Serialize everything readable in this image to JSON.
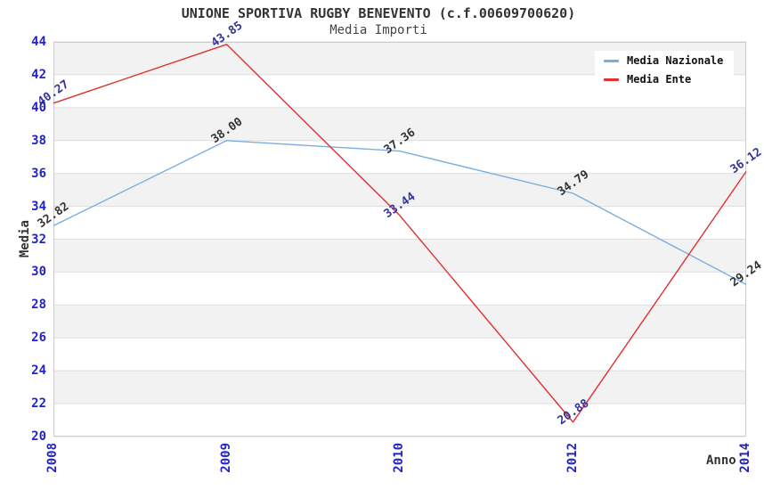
{
  "page": {
    "background": "#ffffff"
  },
  "chart_data": {
    "type": "line",
    "title": "UNIONE SPORTIVA RUGBY BENEVENTO (c.f.00609700620)",
    "subtitle": "Media Importi",
    "xlabel": "Anno",
    "ylabel": "Media",
    "categories": [
      "2008",
      "2009",
      "2010",
      "2012",
      "2014"
    ],
    "series": [
      {
        "name": "Media Nazionale",
        "values": [
          32.82,
          38.0,
          37.36,
          34.79,
          29.24
        ],
        "labels": [
          "32.82",
          "38.00",
          "37.36",
          "34.79",
          "29.24"
        ],
        "color": "#7aaede",
        "label_color": "#333333"
      },
      {
        "name": "Media Ente",
        "values": [
          40.27,
          43.85,
          33.44,
          20.88,
          36.12
        ],
        "labels": [
          "40.27",
          "43.85",
          "33.44",
          "20.88",
          "36.12"
        ],
        "color": "#e03030",
        "label_color": "#333399"
      }
    ],
    "ylim": [
      20,
      44
    ],
    "yticks": [
      20,
      22,
      24,
      26,
      28,
      30,
      32,
      34,
      36,
      38,
      40,
      42,
      44
    ],
    "grid": true,
    "band_colors": [
      "#f2f2f2",
      "#ffffff"
    ],
    "gridline_color": "#dedede",
    "plot_border_color": "#cccccc",
    "tick_label_color": "#2222cc",
    "legend_position": "top-right"
  }
}
